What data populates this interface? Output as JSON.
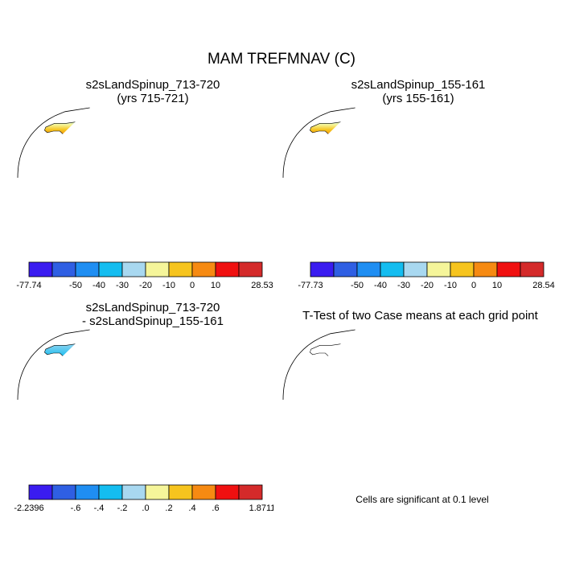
{
  "title": "MAM TREFMNAV (C)",
  "colors": {
    "land_outline": "#000000",
    "ocean": "#ffffff",
    "significance": "#ff0000"
  },
  "chart_data": [
    {
      "type": "heatmap",
      "title": "s2sLandSpinup_713-720",
      "subtitle": "(yrs 715-721)",
      "colorbar": {
        "min_label": "-77.74",
        "max_label": "28.53",
        "tick_labels": [
          "-50",
          "-40",
          "-30",
          "-20",
          "-10",
          "0",
          "10"
        ],
        "colors": [
          "#3a1cf0",
          "#2f5fe3",
          "#1f8ef2",
          "#14bdf0",
          "#a8d8f0",
          "#f5f59a",
          "#f6c41e",
          "#f68a12",
          "#f01010",
          "#d42a2a"
        ]
      }
    },
    {
      "type": "heatmap",
      "title": "s2sLandSpinup_155-161",
      "subtitle": "(yrs 155-161)",
      "colorbar": {
        "min_label": "-77.73",
        "max_label": "28.54",
        "tick_labels": [
          "-50",
          "-40",
          "-30",
          "-20",
          "-10",
          "0",
          "10"
        ],
        "colors": [
          "#3a1cf0",
          "#2f5fe3",
          "#1f8ef2",
          "#14bdf0",
          "#a8d8f0",
          "#f5f59a",
          "#f6c41e",
          "#f68a12",
          "#f01010",
          "#d42a2a"
        ]
      }
    },
    {
      "type": "heatmap",
      "title": "s2sLandSpinup_713-720",
      "subtitle": "- s2sLandSpinup_155-161",
      "colorbar": {
        "min_label": "-2.2396",
        "max_label": "1.8711",
        "tick_labels": [
          "-.6",
          "-.4",
          "-.2",
          ".0",
          ".2",
          ".4",
          ".6"
        ],
        "colors": [
          "#3a1cf0",
          "#2f5fe3",
          "#1f8ef2",
          "#14bdf0",
          "#a8d8f0",
          "#f5f59a",
          "#f6c41e",
          "#f68a12",
          "#f01010",
          "#d42a2a"
        ]
      }
    },
    {
      "type": "heatmap",
      "title": "T-Test of two Case means at each grid point",
      "note": "Cells are significant at 0.1 level"
    }
  ]
}
